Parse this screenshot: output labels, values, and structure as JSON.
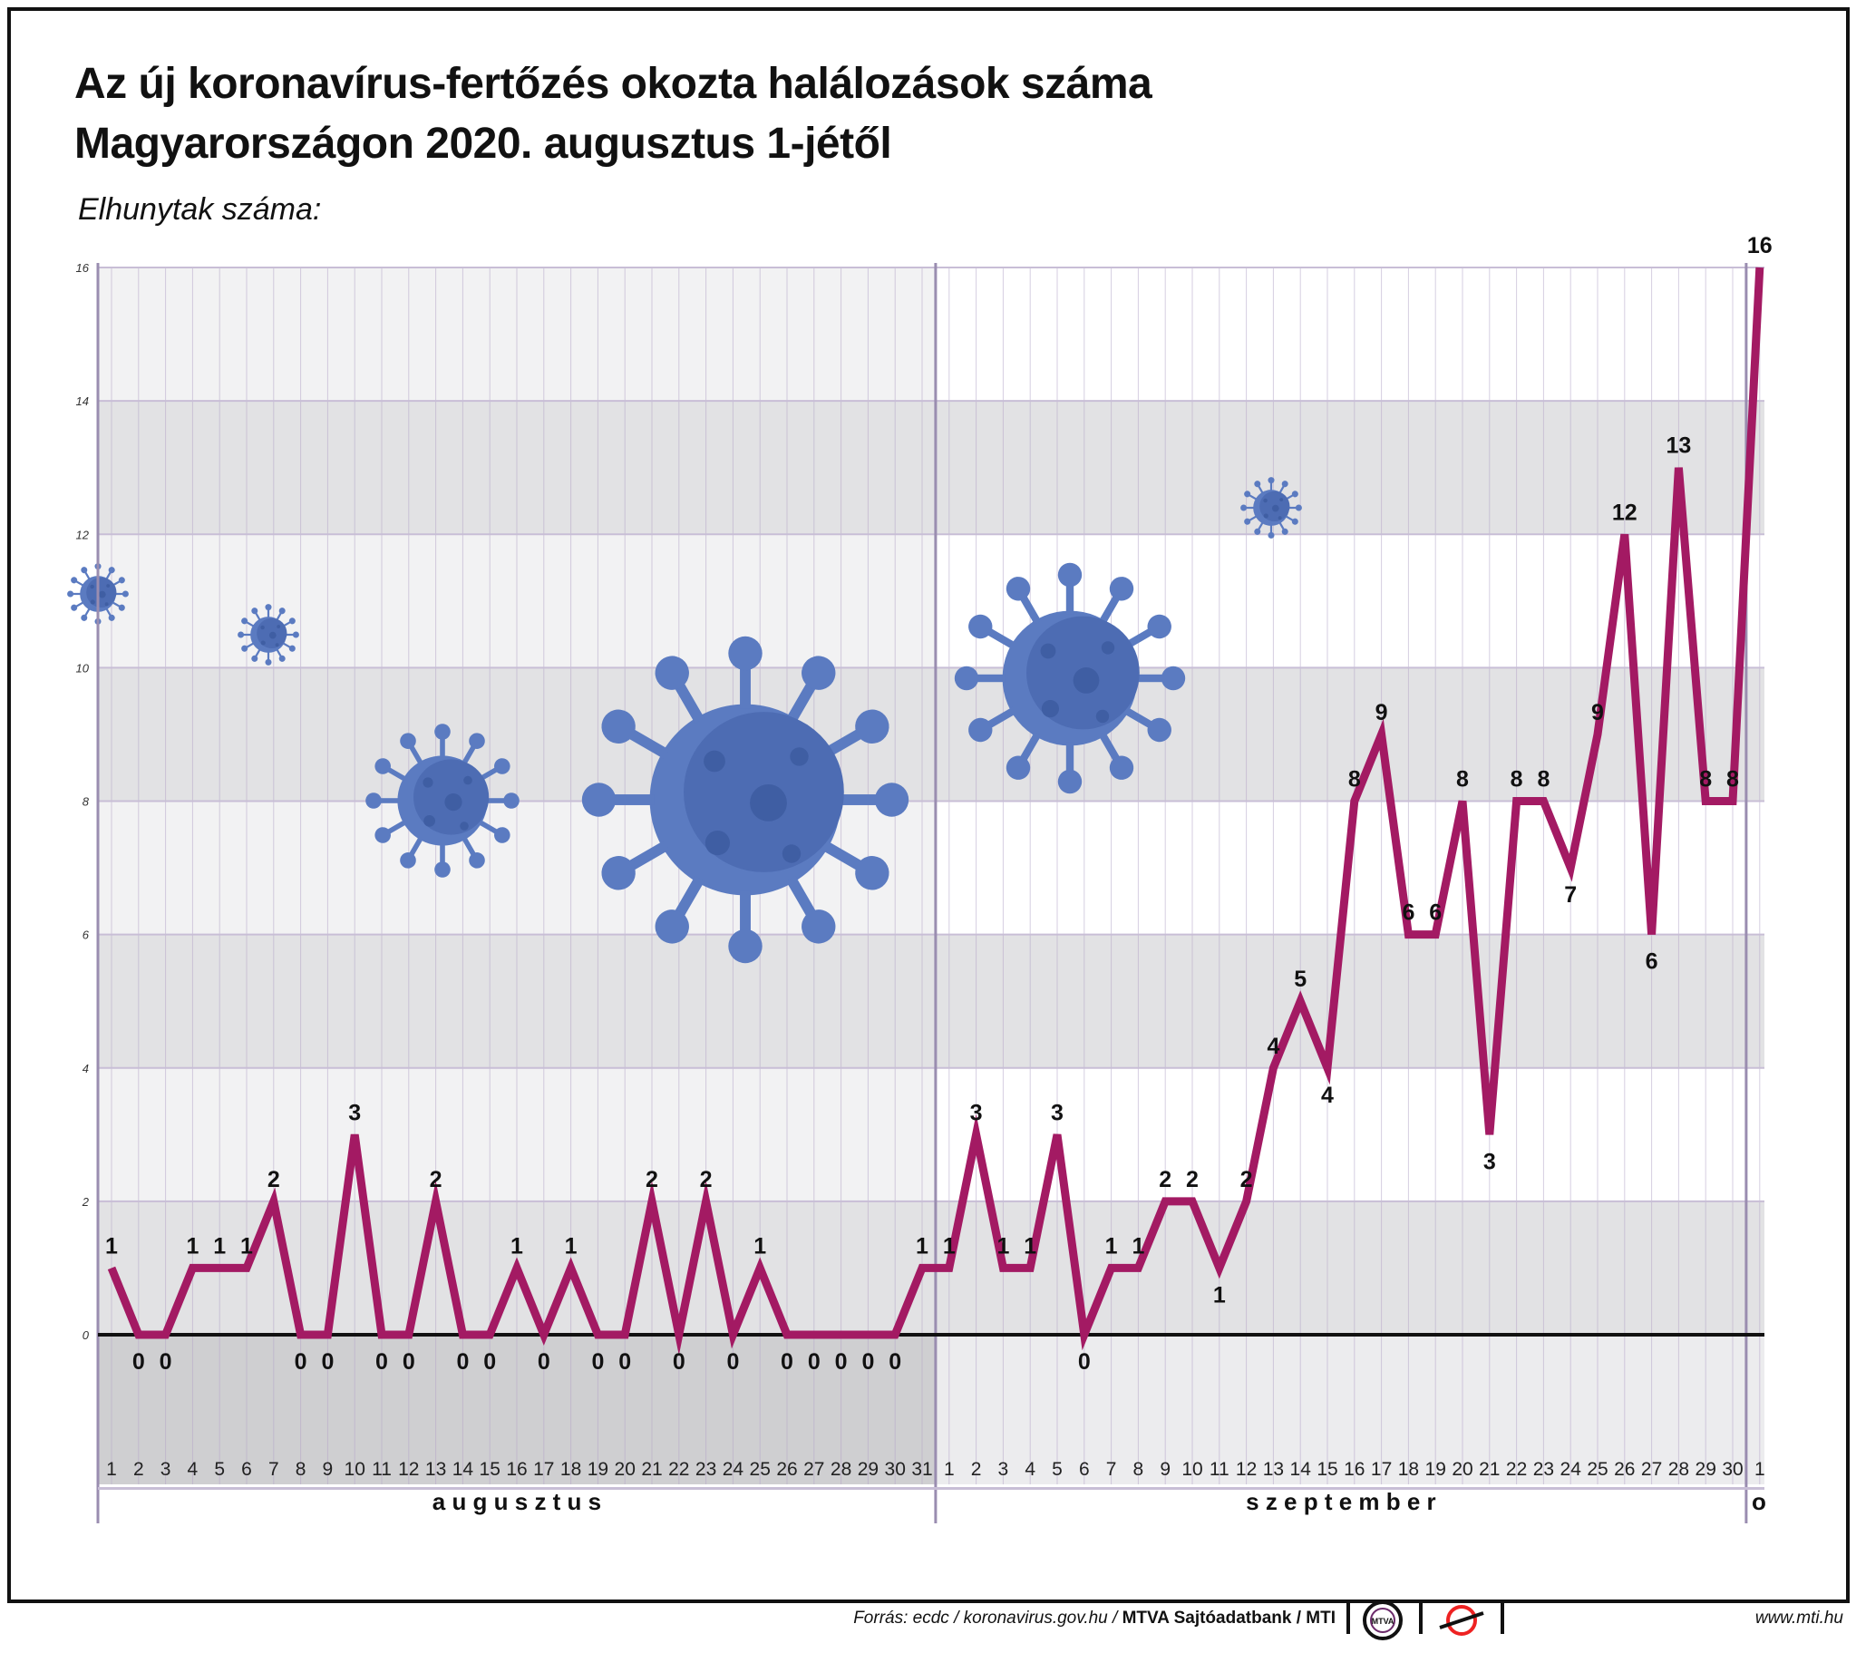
{
  "title_line1": "Az új koronavírus-fertőzés okozta halálozások száma",
  "title_line2": "Magyarországon 2020. augusztus 1-jétől",
  "subtitle": "Elhunytak száma:",
  "footer": {
    "source_italic": "Forrás: ecdc / koronavirus.gov.hu / ",
    "source_bold": "MTVA Sajtóadatbank / MTI",
    "url": "www.mti.hu",
    "logo1_text": "MTVA"
  },
  "colors": {
    "line": "#a31a63",
    "band_dark": "#e2e2e4",
    "band_light": "#f2f2f3",
    "below_zero": "#cfcfd1",
    "gridline": "#b6a7c8",
    "virus": "#5b7bc1"
  },
  "icons": [
    "coronavirus-icon",
    "mtva-logo-icon",
    "mti-logo-icon"
  ],
  "chart_data": {
    "type": "line",
    "ylim": [
      0,
      16
    ],
    "yticks": [
      0,
      2,
      4,
      6,
      8,
      10,
      12,
      14,
      16
    ],
    "months": [
      "a u g u s z t u s",
      "s z e p t e m b e r",
      "o"
    ],
    "x": [
      "1",
      "2",
      "3",
      "4",
      "5",
      "6",
      "7",
      "8",
      "9",
      "10",
      "11",
      "12",
      "13",
      "14",
      "15",
      "16",
      "17",
      "18",
      "19",
      "20",
      "21",
      "22",
      "23",
      "24",
      "25",
      "26",
      "27",
      "28",
      "29",
      "30",
      "31",
      "1",
      "2",
      "3",
      "4",
      "5",
      "6",
      "7",
      "8",
      "9",
      "10",
      "11",
      "12",
      "13",
      "14",
      "15",
      "16",
      "17",
      "18",
      "19",
      "20",
      "21",
      "22",
      "23",
      "24",
      "25",
      "26",
      "27",
      "28",
      "29",
      "30",
      "1"
    ],
    "values": [
      1,
      0,
      0,
      1,
      1,
      1,
      2,
      0,
      0,
      3,
      0,
      0,
      2,
      0,
      0,
      1,
      0,
      1,
      0,
      0,
      2,
      0,
      2,
      0,
      1,
      0,
      0,
      0,
      0,
      0,
      1,
      1,
      3,
      1,
      1,
      3,
      0,
      1,
      1,
      2,
      2,
      1,
      2,
      4,
      5,
      4,
      8,
      9,
      6,
      6,
      8,
      3,
      8,
      8,
      7,
      9,
      12,
      6,
      13,
      8,
      8,
      16
    ]
  }
}
